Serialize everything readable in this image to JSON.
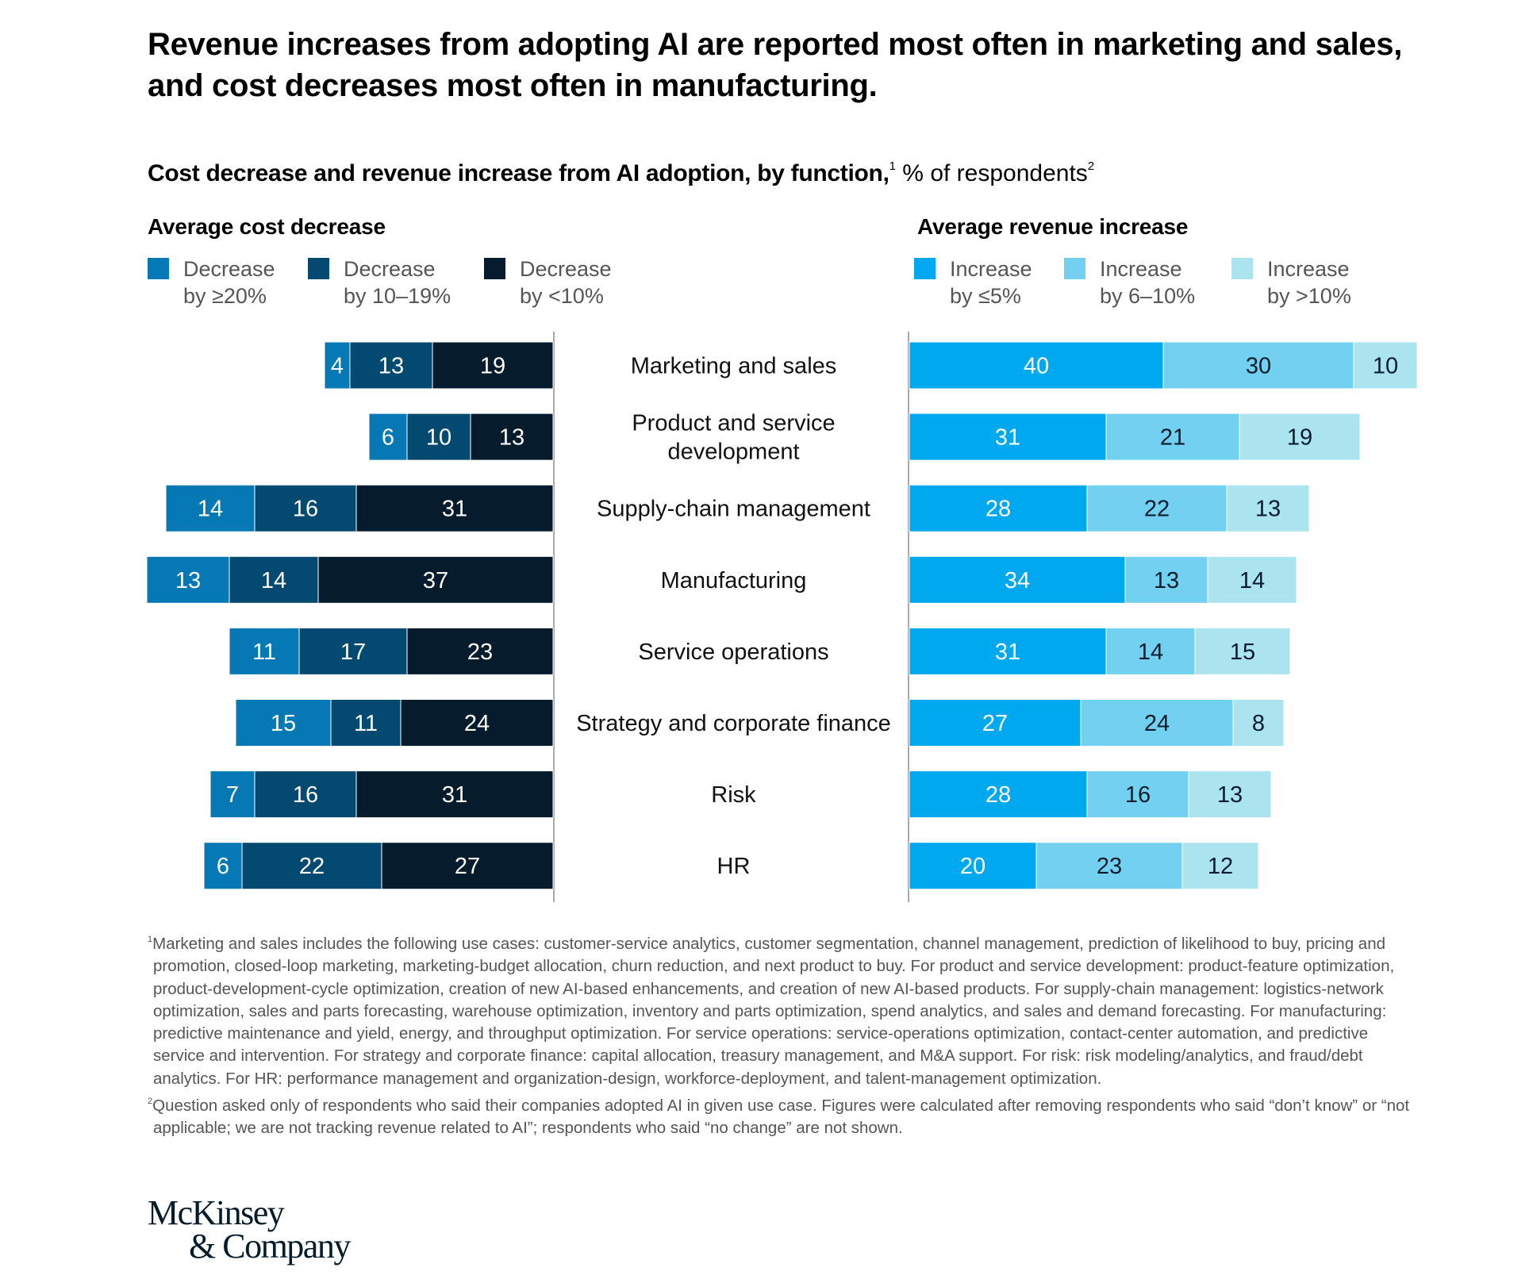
{
  "title": "Revenue increases from adopting AI are reported most often in marketing and sales, and cost decreases most often in manufacturing.",
  "subtitle": {
    "bold": "Cost decrease and revenue increase from AI adoption, by function,",
    "sup1": "1",
    "rest": " % of respondents",
    "sup2": "2"
  },
  "colors": {
    "cost_ge20": "#0679B5",
    "cost_10_19": "#044A70",
    "cost_lt10": "#061B2C",
    "rev_le5": "#00A8F0",
    "rev_6_10": "#72D1F0",
    "rev_gt10": "#ABE3EF",
    "axis": "#a8a8a8"
  },
  "chart_data": {
    "type": "bar",
    "orientation": "horizontal-diverging-stacked",
    "title": "Cost decrease and revenue increase from AI adoption, by function, % of respondents",
    "categories": [
      "Marketing and sales",
      "Product and service development",
      "Supply-chain management",
      "Manufacturing",
      "Service operations",
      "Strategy and corporate finance",
      "Risk",
      "HR"
    ],
    "panels": [
      {
        "name": "Average cost decrease",
        "direction": "left",
        "series": [
          {
            "name": "Decrease by ≥20%",
            "line1": "Decrease",
            "line2": "by ≥20%",
            "color_key": "cost_ge20",
            "label_color": "#ffffff",
            "values": [
              4,
              6,
              14,
              13,
              11,
              15,
              7,
              6
            ]
          },
          {
            "name": "Decrease by 10–19%",
            "line1": "Decrease",
            "line2": "by 10–19%",
            "color_key": "cost_10_19",
            "label_color": "#ffffff",
            "values": [
              13,
              10,
              16,
              14,
              17,
              11,
              16,
              22
            ]
          },
          {
            "name": "Decrease by <10%",
            "line1": "Decrease",
            "line2": "by <10%",
            "color_key": "cost_lt10",
            "label_color": "#ffffff",
            "values": [
              19,
              13,
              31,
              37,
              23,
              24,
              31,
              27
            ]
          }
        ]
      },
      {
        "name": "Average revenue increase",
        "direction": "right",
        "series": [
          {
            "name": "Increase by ≤5%",
            "line1": "Increase",
            "line2": "by ≤5%",
            "color_key": "rev_le5",
            "label_color": "#ffffff",
            "values": [
              40,
              31,
              28,
              34,
              31,
              27,
              28,
              20
            ]
          },
          {
            "name": "Increase by 6–10%",
            "line1": "Increase",
            "line2": "by 6–10%",
            "color_key": "rev_6_10",
            "label_color": "#051C2C",
            "values": [
              30,
              21,
              22,
              13,
              14,
              24,
              16,
              23
            ]
          },
          {
            "name": "Increase by >10%",
            "line1": "Increase",
            "line2": "by >10%",
            "color_key": "rev_gt10",
            "label_color": "#051C2C",
            "values": [
              10,
              19,
              13,
              14,
              15,
              8,
              13,
              12
            ]
          }
        ]
      }
    ],
    "xlabel": "",
    "ylabel": "",
    "legend": "top",
    "grid": false
  },
  "footnotes": [
    {
      "sup": "1",
      "text": "Marketing and sales includes the following use cases: customer-service analytics, customer segmentation, channel management, prediction of likelihood to buy, pricing and promotion, closed-loop marketing, marketing-budget allocation, churn reduction, and next product to buy. For product and service development: product-feature optimization, product-development-cycle optimization, creation of new AI-based enhancements, and creation of new AI-based products. For supply-chain management: logistics-network optimization, sales and parts forecasting, warehouse optimization, inventory and parts optimization, spend analytics, and sales and demand forecasting. For manufacturing: predictive maintenance and yield, energy, and throughput optimization. For service operations: service-operations optimization, contact-center automation, and predictive service and intervention. For strategy and corporate finance: capital allocation, treasury management, and M&A support. For risk: risk modeling/analytics, and fraud/debt analytics. For HR: performance management and organization-design, workforce-deployment, and talent-management optimization."
    },
    {
      "sup": "2",
      "text": "Question asked only of respondents who said their companies adopted AI in given use case. Figures were calculated after removing respondents who said “don’t know” or “not applicable; we are not tracking revenue related to AI”; respondents who said “no change” are not shown."
    }
  ],
  "logo": {
    "line1": "McKinsey",
    "line2": "& Company"
  }
}
